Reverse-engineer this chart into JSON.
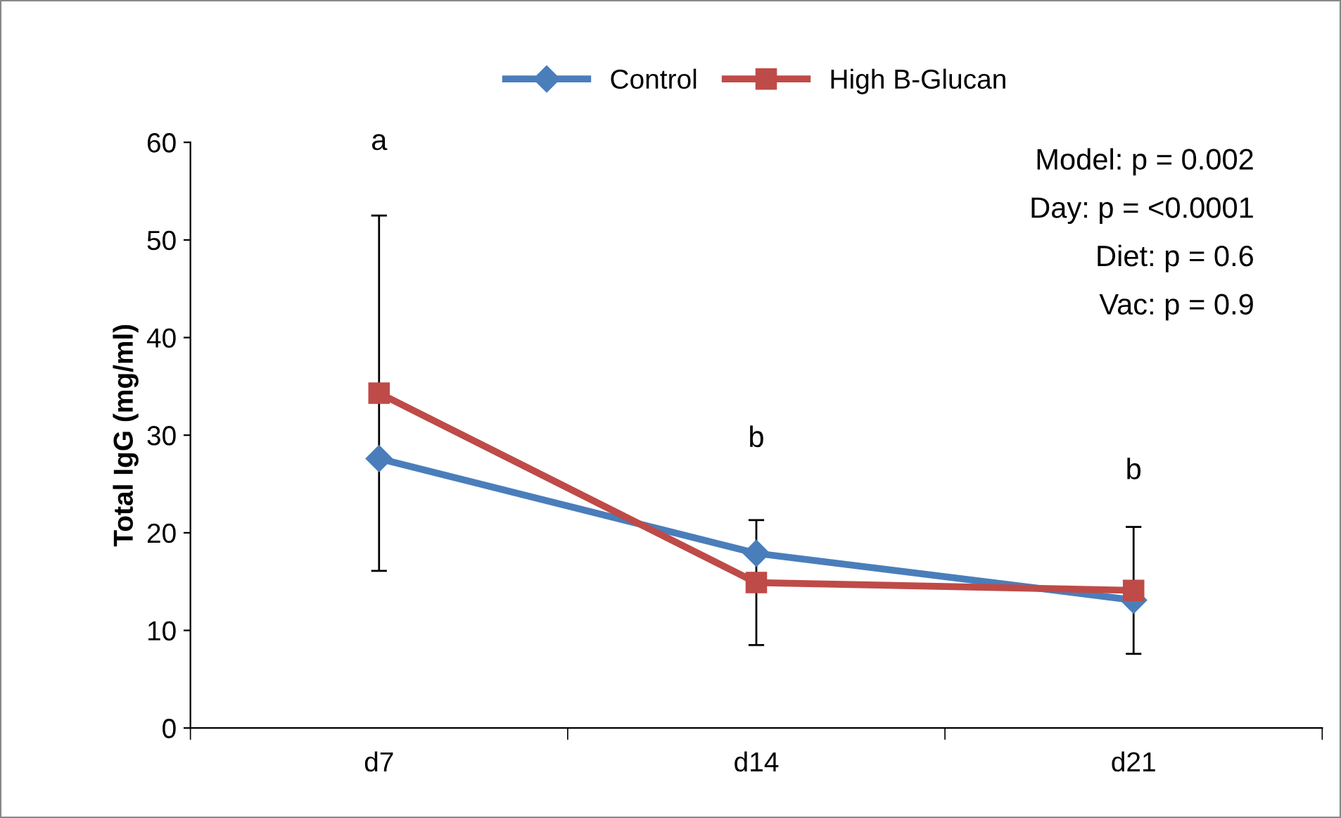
{
  "chart_data": {
    "type": "line",
    "ylabel": "Total IgG (mg/ml)",
    "categories": [
      "d7",
      "d14",
      "d21"
    ],
    "series": [
      {
        "name": "Control",
        "color": "#4a7ebb",
        "marker": "diamond",
        "values": [
          27.6,
          17.9,
          13.1
        ]
      },
      {
        "name": "High B-Glucan",
        "color": "#be4b48",
        "marker": "square",
        "values": [
          34.3,
          14.9,
          14.1
        ],
        "errors": [
          18.2,
          6.4,
          6.5
        ]
      }
    ],
    "ylim": [
      0,
      60
    ],
    "yticks": [
      0,
      10,
      20,
      30,
      40,
      50,
      60
    ],
    "grid": false,
    "legend": "top",
    "line_style": "solid",
    "annotations": [
      "a",
      "b",
      "b",
      "Model: p = 0.002",
      "Day: p = <0.0001",
      "Diet: p = 0.6",
      "Vac: p = 0.9"
    ]
  }
}
